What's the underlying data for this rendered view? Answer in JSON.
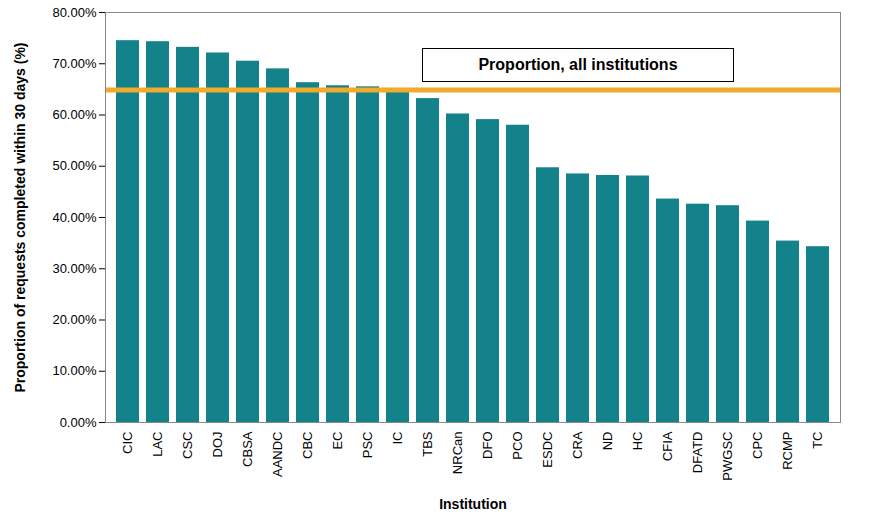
{
  "chart_data": {
    "type": "bar",
    "categories": [
      "CIC",
      "LAC",
      "CSC",
      "DOJ",
      "CBSA",
      "AANDC",
      "CBC",
      "EC",
      "PSC",
      "IC",
      "TBS",
      "NRCan",
      "DFO",
      "PCO",
      "ESDC",
      "CRA",
      "ND",
      "HC",
      "CFIA",
      "DFATD",
      "PWGSC",
      "CPC",
      "RCMP",
      "TC"
    ],
    "values": [
      74.5,
      74.3,
      73.2,
      72.1,
      70.5,
      69.0,
      66.3,
      65.7,
      65.5,
      64.5,
      63.2,
      60.2,
      59.1,
      58.0,
      49.7,
      48.5,
      48.2,
      48.1,
      43.6,
      42.6,
      42.3,
      39.3,
      35.4,
      34.3
    ],
    "color": "#14828a",
    "xlabel": "Institution",
    "ylabel": "Proportion of requests completed within 30 days (%)",
    "ylim": [
      0,
      80
    ],
    "yticks": [
      {
        "value": 0,
        "label": "0.00%"
      },
      {
        "value": 10,
        "label": "10.00%"
      },
      {
        "value": 20,
        "label": "20.00%"
      },
      {
        "value": 30,
        "label": "30.00%"
      },
      {
        "value": 40,
        "label": "40.00%"
      },
      {
        "value": 50,
        "label": "50.00%"
      },
      {
        "value": 60,
        "label": "60.00%"
      },
      {
        "value": 70,
        "label": "70.00%"
      },
      {
        "value": 80,
        "label": "80.00%"
      }
    ],
    "grid": false,
    "reference_line": {
      "value": 64.9,
      "label": "Proportion, all institutions",
      "color": "#f0aa2c"
    }
  }
}
